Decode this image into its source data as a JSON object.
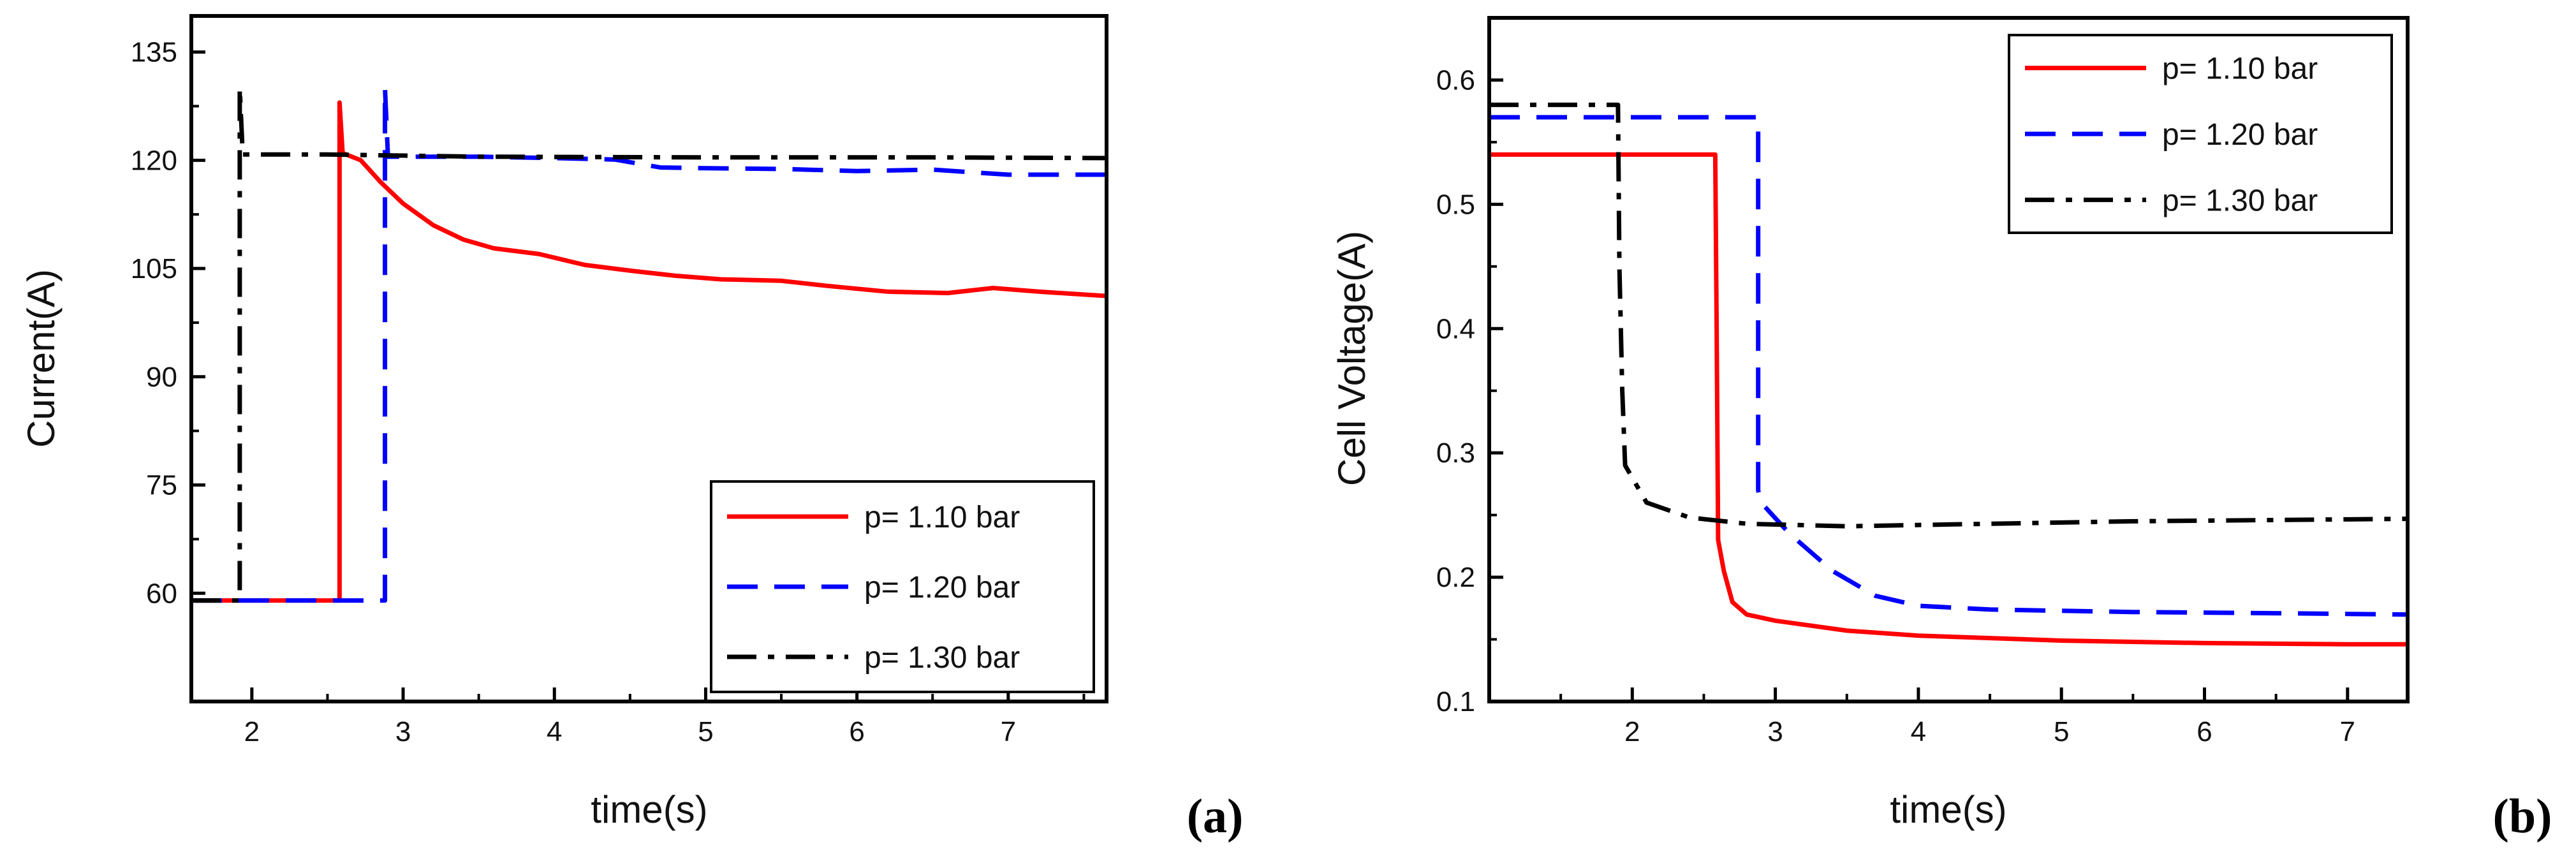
{
  "chart_data": [
    {
      "type": "line",
      "panel_label": "(a)",
      "xlabel": "time(s)",
      "ylabel": "Current(A)",
      "xlim": [
        1.6,
        7.65
      ],
      "ylim": [
        45,
        140
      ],
      "xticks": [
        2,
        3,
        4,
        5,
        6,
        7
      ],
      "yticks": [
        60,
        75,
        90,
        105,
        120,
        135
      ],
      "legend_position": "bottom-right",
      "series": [
        {
          "name": "p= 1.10 bar",
          "color": "#ff0000",
          "dash": "solid",
          "points": [
            [
              1.6,
              59
            ],
            [
              2.58,
              59
            ],
            [
              2.58,
              128
            ],
            [
              2.6,
              121
            ],
            [
              2.72,
              120
            ],
            [
              2.85,
              117
            ],
            [
              3.0,
              114
            ],
            [
              3.2,
              111
            ],
            [
              3.4,
              109
            ],
            [
              3.6,
              107.8
            ],
            [
              3.9,
              107
            ],
            [
              4.2,
              105.5
            ],
            [
              4.5,
              104.7
            ],
            [
              4.8,
              104
            ],
            [
              5.1,
              103.5
            ],
            [
              5.5,
              103.3
            ],
            [
              5.8,
              102.6
            ],
            [
              6.2,
              101.8
            ],
            [
              6.6,
              101.6
            ],
            [
              6.9,
              102.3
            ],
            [
              7.2,
              101.8
            ],
            [
              7.65,
              101.2
            ]
          ]
        },
        {
          "name": "p= 1.20 bar",
          "color": "#0000ff",
          "dash": "dashed",
          "points": [
            [
              1.6,
              59
            ],
            [
              2.88,
              59
            ],
            [
              2.88,
              130
            ],
            [
              2.9,
              120.5
            ],
            [
              3.5,
              120.5
            ],
            [
              4.0,
              120.3
            ],
            [
              4.4,
              120.1
            ],
            [
              4.7,
              119
            ],
            [
              5.0,
              118.9
            ],
            [
              5.5,
              118.8
            ],
            [
              6.0,
              118.5
            ],
            [
              6.5,
              118.7
            ],
            [
              7.0,
              118
            ],
            [
              7.65,
              118
            ]
          ]
        },
        {
          "name": "p= 1.30 bar",
          "color": "#000000",
          "dash": "dashdot",
          "points": [
            [
              1.6,
              59
            ],
            [
              1.92,
              59
            ],
            [
              1.92,
              130
            ],
            [
              1.94,
              120.8
            ],
            [
              2.5,
              120.8
            ],
            [
              3.5,
              120.5
            ],
            [
              5.0,
              120.4
            ],
            [
              6.5,
              120.4
            ],
            [
              7.65,
              120.3
            ]
          ]
        }
      ]
    },
    {
      "type": "line",
      "panel_label": "(b)",
      "xlabel": "time(s)",
      "ylabel": "Cell Voltage(A)",
      "xlim": [
        1.0,
        7.42
      ],
      "ylim": [
        0.1,
        0.65
      ],
      "xticks": [
        2,
        3,
        4,
        5,
        6,
        7
      ],
      "yticks": [
        0.1,
        0.2,
        0.3,
        0.4,
        0.5,
        0.6
      ],
      "legend_position": "top-right",
      "series": [
        {
          "name": "p= 1.10 bar",
          "color": "#ff0000",
          "dash": "solid",
          "points": [
            [
              1.0,
              0.54
            ],
            [
              2.58,
              0.54
            ],
            [
              2.59,
              0.4
            ],
            [
              2.6,
              0.23
            ],
            [
              2.64,
              0.205
            ],
            [
              2.7,
              0.18
            ],
            [
              2.8,
              0.17
            ],
            [
              3.0,
              0.165
            ],
            [
              3.5,
              0.157
            ],
            [
              4.0,
              0.153
            ],
            [
              5.0,
              0.149
            ],
            [
              6.0,
              0.147
            ],
            [
              7.0,
              0.146
            ],
            [
              7.42,
              0.146
            ]
          ]
        },
        {
          "name": "p= 1.20 bar",
          "color": "#0000ff",
          "dash": "dashed",
          "points": [
            [
              1.0,
              0.57
            ],
            [
              2.88,
              0.57
            ],
            [
              2.88,
              0.27
            ],
            [
              2.9,
              0.26
            ],
            [
              3.1,
              0.235
            ],
            [
              3.4,
              0.205
            ],
            [
              3.7,
              0.185
            ],
            [
              4.0,
              0.177
            ],
            [
              4.5,
              0.174
            ],
            [
              5.5,
              0.172
            ],
            [
              6.5,
              0.171
            ],
            [
              7.42,
              0.17
            ]
          ]
        },
        {
          "name": "p= 1.30 bar",
          "color": "#000000",
          "dash": "dashdot",
          "points": [
            [
              1.0,
              0.58
            ],
            [
              1.9,
              0.58
            ],
            [
              1.91,
              0.45
            ],
            [
              1.93,
              0.35
            ],
            [
              1.95,
              0.29
            ],
            [
              2.1,
              0.26
            ],
            [
              2.4,
              0.248
            ],
            [
              2.8,
              0.243
            ],
            [
              3.5,
              0.241
            ],
            [
              4.5,
              0.243
            ],
            [
              5.5,
              0.245
            ],
            [
              6.5,
              0.246
            ],
            [
              7.42,
              0.247
            ]
          ]
        }
      ]
    }
  ]
}
